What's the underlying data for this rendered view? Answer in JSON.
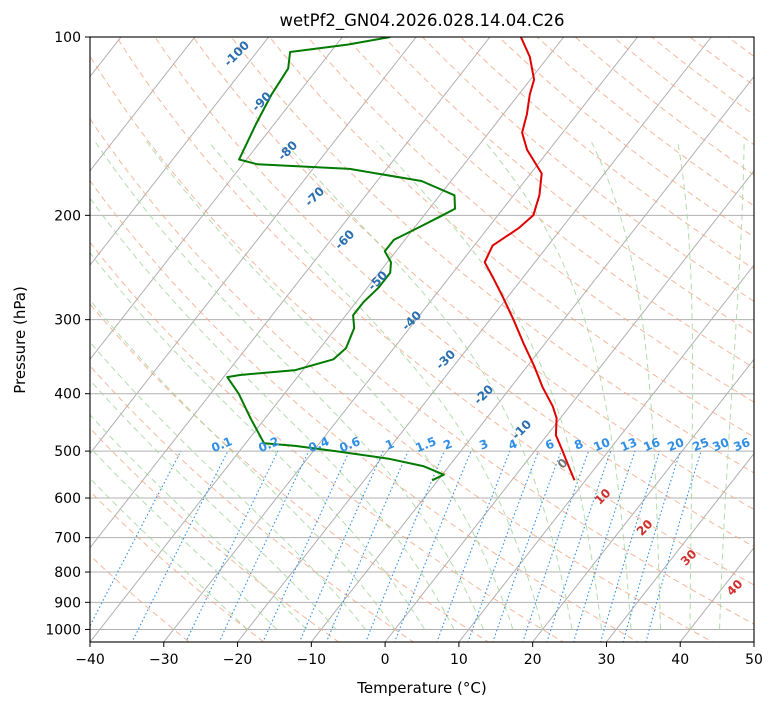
{
  "chart_data": {
    "type": "line",
    "title": "wetPf2_GN04.2026.028.14.04.C26",
    "xlabel": "Temperature (°C)",
    "ylabel": "Pressure (hPa)",
    "xlim": [
      -40,
      50
    ],
    "ylim": [
      1050,
      100
    ],
    "y_scale": "log",
    "x_ticks": [
      -40,
      -30,
      -20,
      -10,
      0,
      10,
      20,
      30,
      40,
      50
    ],
    "x_tick_labels": [
      "−40",
      "−30",
      "−20",
      "−10",
      "0",
      "10",
      "20",
      "30",
      "40",
      "50"
    ],
    "y_ticks": [
      100,
      200,
      300,
      400,
      500,
      600,
      700,
      800,
      900,
      1000
    ],
    "y_tick_labels": [
      "100",
      "200",
      "300",
      "400",
      "500",
      "600",
      "700",
      "800",
      "900",
      "1000"
    ],
    "grid": true,
    "series": [
      {
        "color": "#e00000",
        "points": [
          {
            "p": 560,
            "t": 8.5
          },
          {
            "p": 530,
            "t": 6.2
          },
          {
            "p": 500,
            "t": 3.8
          },
          {
            "p": 470,
            "t": 1.2
          },
          {
            "p": 440,
            "t": -0.5
          },
          {
            "p": 420,
            "t": -2.3
          },
          {
            "p": 390,
            "t": -5.7
          },
          {
            "p": 360,
            "t": -9.0
          },
          {
            "p": 330,
            "t": -12.8
          },
          {
            "p": 300,
            "t": -16.8
          },
          {
            "p": 275,
            "t": -20.6
          },
          {
            "p": 255,
            "t": -24.0
          },
          {
            "p": 240,
            "t": -26.8
          },
          {
            "p": 225,
            "t": -27.5
          },
          {
            "p": 210,
            "t": -25.8
          },
          {
            "p": 200,
            "t": -25.2
          },
          {
            "p": 185,
            "t": -26.5
          },
          {
            "p": 170,
            "t": -28.5
          },
          {
            "p": 155,
            "t": -33.0
          },
          {
            "p": 145,
            "t": -35.5
          },
          {
            "p": 135,
            "t": -36.8
          },
          {
            "p": 125,
            "t": -38.5
          },
          {
            "p": 118,
            "t": -39.5
          },
          {
            "p": 108,
            "t": -42.5
          },
          {
            "p": 100,
            "t": -45.8
          }
        ]
      },
      {
        "color": "#007a00",
        "points": [
          {
            "p": 560,
            "t": -10.8
          },
          {
            "p": 548,
            "t": -9.8
          },
          {
            "p": 530,
            "t": -13.5
          },
          {
            "p": 515,
            "t": -19.0
          },
          {
            "p": 500,
            "t": -27.0
          },
          {
            "p": 490,
            "t": -33.0
          },
          {
            "p": 485,
            "t": -37.5
          },
          {
            "p": 440,
            "t": -42.0
          },
          {
            "p": 400,
            "t": -46.2
          },
          {
            "p": 375,
            "t": -49.5
          },
          {
            "p": 372,
            "t": -48.0
          },
          {
            "p": 365,
            "t": -41.0
          },
          {
            "p": 350,
            "t": -37.0
          },
          {
            "p": 335,
            "t": -36.5
          },
          {
            "p": 310,
            "t": -37.5
          },
          {
            "p": 295,
            "t": -39.0
          },
          {
            "p": 280,
            "t": -39.0
          },
          {
            "p": 265,
            "t": -38.5
          },
          {
            "p": 250,
            "t": -38.5
          },
          {
            "p": 240,
            "t": -39.5
          },
          {
            "p": 230,
            "t": -41.5
          },
          {
            "p": 220,
            "t": -41.5
          },
          {
            "p": 210,
            "t": -39.5
          },
          {
            "p": 200,
            "t": -37.5
          },
          {
            "p": 195,
            "t": -36.5
          },
          {
            "p": 185,
            "t": -38.0
          },
          {
            "p": 175,
            "t": -44.0
          },
          {
            "p": 167,
            "t": -55.0
          },
          {
            "p": 164,
            "t": -68.0
          },
          {
            "p": 161,
            "t": -71.0
          },
          {
            "p": 140,
            "t": -72.5
          },
          {
            "p": 125,
            "t": -73.5
          },
          {
            "p": 113,
            "t": -74.0
          },
          {
            "p": 106,
            "t": -75.5
          },
          {
            "p": 103,
            "t": -68.5
          },
          {
            "p": 100,
            "t": -63.5
          }
        ]
      }
    ],
    "isotherm_labels": [
      "-100",
      "-90",
      "-80",
      "-70",
      "-60",
      "-50",
      "-40",
      "-30",
      "-20",
      "-10"
    ],
    "mixing_ratio_labels": [
      "0.1",
      "0.2",
      "0.4",
      "0.6",
      "1",
      "1.5",
      "2",
      "3",
      "4",
      "6",
      "8",
      "10",
      "13",
      "16",
      "20",
      "25",
      "30",
      "36"
    ],
    "moist_adiabat_labels": [
      "0",
      "10",
      "20",
      "30",
      "40"
    ],
    "colors": {
      "temperature": "#e00000",
      "dewpoint": "#007a00",
      "isotherm_label": "#2a6fb0",
      "mixing_ratio": "#2f8fe6",
      "moist_adiabat_label": "#d03030",
      "dry_adiabat": "#f4a582",
      "moist_adiabat": "#a6d6a0",
      "grid": "#b0b0b0"
    }
  }
}
